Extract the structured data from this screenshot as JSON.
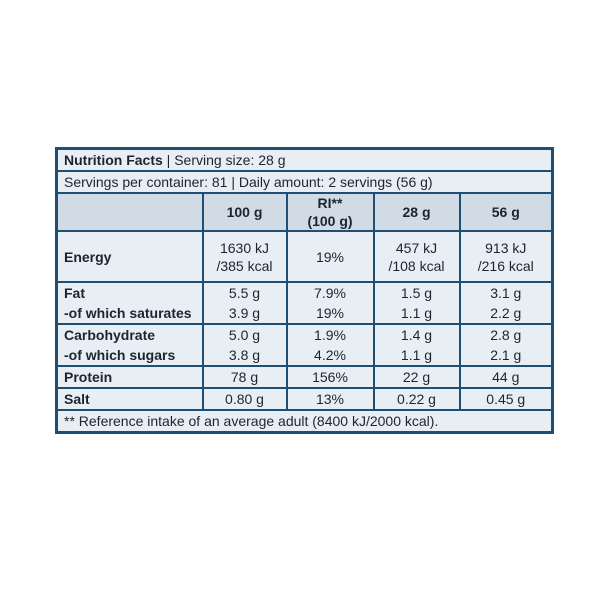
{
  "header": {
    "title": "Nutrition Facts",
    "separator": "|",
    "serving": "Serving size: 28 g",
    "line2": "Servings per container: 81 | Daily amount: 2 servings (56 g)"
  },
  "table": {
    "columns": [
      [
        "100 g"
      ],
      [
        "RI**",
        "(100 g)"
      ],
      [
        "28 g"
      ],
      [
        "56 g"
      ]
    ],
    "groups": [
      [
        {
          "label": "Energy",
          "cells": [
            "1630 kJ\n/385 kcal",
            "19%",
            "457 kJ\n/108 kcal",
            "913 kJ\n/216 kcal"
          ]
        }
      ],
      [
        {
          "label": "Fat",
          "cells": [
            "5.5 g",
            "7.9%",
            "1.5 g",
            "3.1 g"
          ]
        },
        {
          "label": "-of which saturates",
          "cells": [
            "3.9 g",
            "19%",
            "1.1 g",
            "2.2 g"
          ]
        }
      ],
      [
        {
          "label": "Carbohydrate",
          "cells": [
            "5.0 g",
            "1.9%",
            "1.4 g",
            "2.8 g"
          ]
        },
        {
          "label": "-of which sugars",
          "cells": [
            "3.8 g",
            "4.2%",
            "1.1 g",
            "2.1 g"
          ]
        }
      ],
      [
        {
          "label": "Protein",
          "cells": [
            "78 g",
            "156%",
            "22 g",
            "44 g"
          ]
        }
      ],
      [
        {
          "label": "Salt",
          "cells": [
            "0.80 g",
            "13%",
            "0.22 g",
            "0.45 g"
          ]
        }
      ]
    ]
  },
  "footnote": "** Reference intake of an average adult (8400 kJ/2000 kcal)."
}
